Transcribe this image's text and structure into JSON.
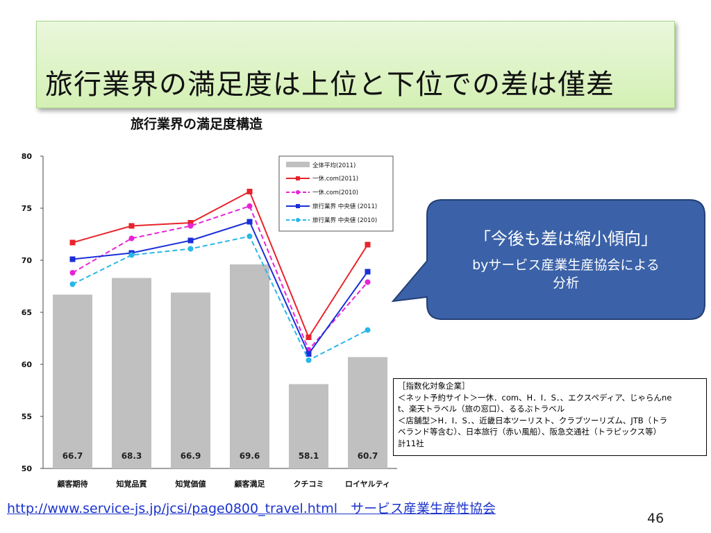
{
  "slide": {
    "title": "旅行業界の満足度は上位と下位での差は僅差",
    "source_link": "http://www.service-js.jp/jcsi/page0800_travel.html　サービス産業生産性協会",
    "page_number": "46"
  },
  "callout": {
    "line1": "「今後も差は縮小傾向」",
    "line2": "byサービス産業生産協会による分析",
    "fill_color": "#3b62a8",
    "border_color": "#233f75"
  },
  "note": {
    "lines": [
      "［指数化対象企業］",
      "＜ネット予約サイト＞一休．com、H．I．S．、エクスペディア、じゃらんne",
      "t、楽天トラベル（旅の窓口）、るるぶトラベル",
      "＜店舗型＞H．I．S．、近畿日本ツーリスト、クラブツーリズム、JTB（トラ",
      "ベランド等含む）、日本旅行（赤い風船）、阪急交通社（トラピックス等）",
      "計11社"
    ]
  },
  "chart_data": {
    "type": "bar",
    "title": "旅行業界の満足度構造",
    "categories": [
      "顧客期待",
      "知覚品質",
      "知覚価値",
      "顧客満足",
      "クチコミ",
      "ロイヤルティ"
    ],
    "ylim": [
      50,
      80
    ],
    "yticks": [
      "50",
      "55",
      "60",
      "65",
      "70",
      "75",
      "80"
    ],
    "grid": false,
    "legend_position": "top-right",
    "bar_series": {
      "name": "全体平均(2011)",
      "color": "#c0c0c0",
      "values": [
        66.7,
        68.3,
        66.9,
        69.6,
        58.1,
        60.7
      ],
      "value_labels": [
        "66.7",
        "68.3",
        "66.9",
        "69.6",
        "58.1",
        "60.7"
      ]
    },
    "line_series": [
      {
        "name": "一休.com(2011)",
        "color": "#e8232a",
        "marker": "square",
        "dashed": false,
        "values": [
          71.7,
          73.3,
          73.6,
          76.6,
          62.6,
          71.5
        ]
      },
      {
        "name": "一休.com(2010)",
        "color": "#e623d6",
        "marker": "circle",
        "dashed": true,
        "values": [
          68.8,
          72.1,
          73.3,
          75.2,
          61.4,
          67.9
        ]
      },
      {
        "name": "旅行業界 中央値 (2011)",
        "color": "#1a2fd8",
        "marker": "square",
        "dashed": false,
        "values": [
          70.1,
          70.7,
          71.9,
          73.7,
          61.0,
          68.9
        ]
      },
      {
        "name": "旅行業界 中央値 (2010)",
        "color": "#27b7e8",
        "marker": "circle",
        "dashed": true,
        "values": [
          67.7,
          70.5,
          71.1,
          72.3,
          60.4,
          63.3
        ]
      }
    ]
  }
}
